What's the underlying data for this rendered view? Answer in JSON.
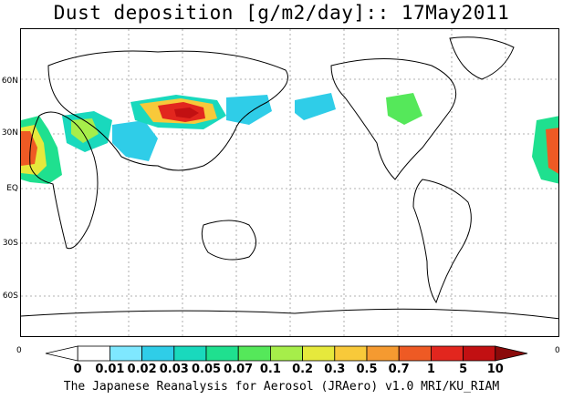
{
  "title": "Dust deposition [g/m2/day]:: 17May2011",
  "lat_labels": [
    "60N",
    "30N",
    "EQ",
    "30S",
    "60S"
  ],
  "edge_zero": "0",
  "colorbar": {
    "labels": [
      "0",
      "0.01",
      "0.02",
      "0.03",
      "0.05",
      "0.07",
      "0.1",
      "0.2",
      "0.3",
      "0.5",
      "0.7",
      "1",
      "5",
      "10"
    ],
    "colors": [
      "#ffffff",
      "#ffffff",
      "#7fe8ff",
      "#2fcde8",
      "#19d9bd",
      "#1fe08f",
      "#55e85a",
      "#a6ee4a",
      "#e6e93c",
      "#f8c93a",
      "#f59a30",
      "#ee5a24",
      "#e2261e",
      "#c21012",
      "#8a0a0a"
    ]
  },
  "footer": "The Japanese Reanalysis for Aerosol (JRAero) v1.0 MRI/KU_RIAM"
}
